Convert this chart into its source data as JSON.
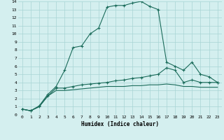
{
  "title": "",
  "xlabel": "Humidex (Indice chaleur)",
  "ylabel": "",
  "xlim": [
    -0.5,
    23.5
  ],
  "ylim": [
    0,
    14
  ],
  "xtick_vals": [
    0,
    1,
    2,
    3,
    4,
    5,
    6,
    7,
    8,
    9,
    10,
    11,
    12,
    13,
    14,
    15,
    16,
    17,
    18,
    19,
    20,
    21,
    22,
    23
  ],
  "xtick_labels": [
    "0",
    "1",
    "2",
    "3",
    "4",
    "5",
    "6",
    "7",
    "8",
    "9",
    "10",
    "11",
    "12",
    "13",
    "14",
    "15",
    "16",
    "17",
    "18",
    "19",
    "20",
    "21",
    "22",
    "23"
  ],
  "ytick_vals": [
    0,
    1,
    2,
    3,
    4,
    5,
    6,
    7,
    8,
    9,
    10,
    11,
    12,
    13,
    14
  ],
  "ytick_labels": [
    "0",
    "1",
    "2",
    "3",
    "4",
    "5",
    "6",
    "7",
    "8",
    "9",
    "10",
    "11",
    "12",
    "13",
    "14"
  ],
  "bg_color": "#d4efef",
  "grid_color": "#a8d4d4",
  "line_color": "#1a6b5a",
  "line1_x": [
    0,
    1,
    2,
    3,
    4,
    5,
    6,
    7,
    8,
    9,
    10,
    11,
    12,
    13,
    14,
    15,
    16,
    17,
    18,
    19,
    20,
    21,
    22,
    23
  ],
  "line1_y": [
    0.7,
    0.5,
    1.1,
    2.5,
    3.5,
    5.5,
    8.3,
    8.5,
    10.0,
    10.7,
    13.3,
    13.5,
    13.5,
    13.8,
    14.0,
    13.4,
    13.0,
    6.5,
    6.0,
    5.5,
    6.5,
    5.0,
    4.7,
    4.0
  ],
  "line2_x": [
    0,
    1,
    2,
    3,
    4,
    5,
    6,
    7,
    8,
    9,
    10,
    11,
    12,
    13,
    14,
    15,
    16,
    17,
    18,
    19,
    20,
    21,
    22,
    23
  ],
  "line2_y": [
    0.7,
    0.5,
    1.0,
    2.3,
    3.3,
    3.3,
    3.5,
    3.7,
    3.8,
    3.9,
    4.0,
    4.2,
    4.3,
    4.5,
    4.6,
    4.8,
    5.0,
    5.8,
    5.5,
    4.0,
    4.3,
    4.0,
    4.0,
    4.0
  ],
  "line3_x": [
    0,
    1,
    2,
    3,
    4,
    5,
    6,
    7,
    8,
    9,
    10,
    11,
    12,
    13,
    14,
    15,
    16,
    17,
    18,
    19,
    20,
    21,
    22,
    23
  ],
  "line3_y": [
    0.7,
    0.5,
    1.0,
    2.3,
    3.0,
    3.0,
    3.1,
    3.2,
    3.3,
    3.4,
    3.5,
    3.5,
    3.5,
    3.6,
    3.6,
    3.7,
    3.7,
    3.8,
    3.7,
    3.5,
    3.5,
    3.4,
    3.4,
    3.4
  ],
  "marker_size": 2.0,
  "linewidth": 0.8,
  "xlabel_fontsize": 5.5,
  "tick_fontsize": 4.5
}
